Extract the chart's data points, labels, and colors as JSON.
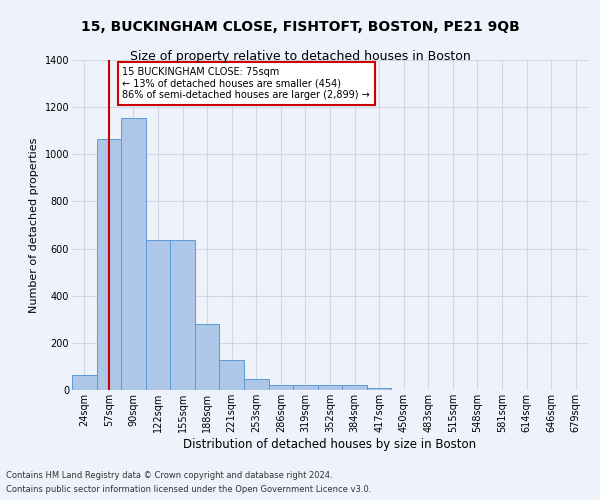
{
  "title": "15, BUCKINGHAM CLOSE, FISHTOFT, BOSTON, PE21 9QB",
  "subtitle": "Size of property relative to detached houses in Boston",
  "xlabel": "Distribution of detached houses by size in Boston",
  "ylabel": "Number of detached properties",
  "footnote1": "Contains HM Land Registry data © Crown copyright and database right 2024.",
  "footnote2": "Contains public sector information licensed under the Open Government Licence v3.0.",
  "categories": [
    "24sqm",
    "57sqm",
    "90sqm",
    "122sqm",
    "155sqm",
    "188sqm",
    "221sqm",
    "253sqm",
    "286sqm",
    "319sqm",
    "352sqm",
    "384sqm",
    "417sqm",
    "450sqm",
    "483sqm",
    "515sqm",
    "548sqm",
    "581sqm",
    "614sqm",
    "646sqm",
    "679sqm"
  ],
  "values": [
    62,
    1065,
    1155,
    635,
    635,
    278,
    128,
    45,
    20,
    20,
    20,
    22,
    10,
    0,
    0,
    0,
    0,
    0,
    0,
    0,
    0
  ],
  "bar_color": "#aec6e8",
  "bar_edge_color": "#5b9bd5",
  "property_line_x": 1.0,
  "property_line_color": "#cc0000",
  "annotation_text": "15 BUCKINGHAM CLOSE: 75sqm\n← 13% of detached houses are smaller (454)\n86% of semi-detached houses are larger (2,899) →",
  "annotation_box_color": "#cc0000",
  "annotation_bg": "white",
  "ylim": [
    0,
    1400
  ],
  "yticks": [
    0,
    200,
    400,
    600,
    800,
    1000,
    1200,
    1400
  ],
  "grid_color": "#d0d8e8",
  "bg_color": "#eef2fa",
  "title_fontsize": 10,
  "subtitle_fontsize": 9,
  "tick_fontsize": 7,
  "ylabel_fontsize": 8,
  "xlabel_fontsize": 8.5,
  "footnote_fontsize": 6
}
